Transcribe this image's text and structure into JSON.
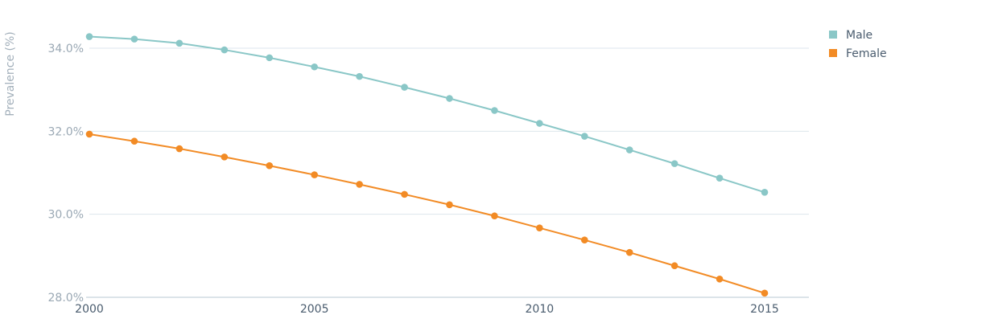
{
  "chart_data": {
    "type": "line",
    "title": "",
    "xlabel": "",
    "ylabel": "Prevalence (%)",
    "x": [
      2000,
      2001,
      2002,
      2003,
      2004,
      2005,
      2006,
      2007,
      2008,
      2009,
      2010,
      2011,
      2012,
      2013,
      2014,
      2015
    ],
    "series": [
      {
        "name": "Male",
        "color": "#8ac7c7",
        "values": [
          34.28,
          34.22,
          34.12,
          33.96,
          33.77,
          33.55,
          33.32,
          33.06,
          32.79,
          32.5,
          32.19,
          31.88,
          31.55,
          31.22,
          30.87,
          30.53
        ]
      },
      {
        "name": "Female",
        "color": "#f28b25",
        "values": [
          31.93,
          31.76,
          31.58,
          31.38,
          31.17,
          30.95,
          30.72,
          30.48,
          30.23,
          29.96,
          29.67,
          29.38,
          29.08,
          28.76,
          28.44,
          28.1
        ]
      }
    ],
    "ylim": [
      28.0,
      34.0
    ],
    "yticks": [
      {
        "value": 28.0,
        "label": "28.0%"
      },
      {
        "value": 30.0,
        "label": "30.0%"
      },
      {
        "value": 32.0,
        "label": "32.0%"
      },
      {
        "value": 34.0,
        "label": "34.0%"
      }
    ],
    "xticks": [
      {
        "value": 2000,
        "label": "2000"
      },
      {
        "value": 2005,
        "label": "2005"
      },
      {
        "value": 2010,
        "label": "2010"
      },
      {
        "value": 2015,
        "label": "2015"
      }
    ],
    "grid": true,
    "legend_position": "top-right"
  }
}
